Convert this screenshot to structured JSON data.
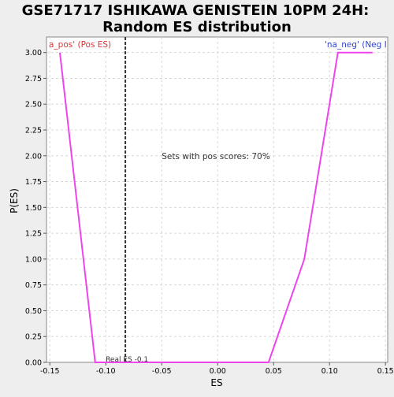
{
  "chart_data": {
    "type": "line",
    "title_lines": [
      "GSE71717 ISHIKAWA GENISTEIN 10PM 24H:",
      "Random ES distribution"
    ],
    "xlabel": "ES",
    "ylabel": "P(ES)",
    "xlim": [
      -0.153,
      0.152
    ],
    "ylim": [
      0,
      3.15
    ],
    "x_ticks": [
      -0.15,
      -0.1,
      -0.05,
      0.0,
      0.05,
      0.1,
      0.15
    ],
    "x_tick_labels": [
      "-0.15",
      "-0.10",
      "-0.05",
      "0.00",
      "0.05",
      "0.10",
      "0.15"
    ],
    "y_ticks": [
      0.0,
      0.25,
      0.5,
      0.75,
      1.0,
      1.25,
      1.5,
      1.75,
      2.0,
      2.25,
      2.5,
      2.75,
      3.0
    ],
    "y_tick_labels": [
      "0.00",
      "0.25",
      "0.50",
      "0.75",
      "1.00",
      "1.25",
      "1.50",
      "1.75",
      "2.00",
      "2.25",
      "2.50",
      "2.75",
      "3.00"
    ],
    "grid": true,
    "series": [
      {
        "color": "#ee44ee",
        "x": [
          -0.141,
          -0.1095,
          0.0455,
          0.0775,
          0.1075,
          0.1385
        ],
        "y": [
          3.0,
          0.0,
          0.0,
          1.0,
          3.0,
          3.0
        ]
      }
    ],
    "real_es": {
      "x": -0.0825,
      "label": "Real ES -0.1"
    },
    "annotations": {
      "center_text": "Sets with pos scores: 70%",
      "center_text_x": -0.05,
      "center_text_y": 2.0,
      "left_label": "a_pos' (Pos ES)",
      "right_label": "'na_neg' (Neg I"
    },
    "colors": {
      "left_label": "#dd3333",
      "right_label": "#3344cc",
      "real_es_line": "#333333",
      "grid": "#d8d8d8"
    }
  }
}
